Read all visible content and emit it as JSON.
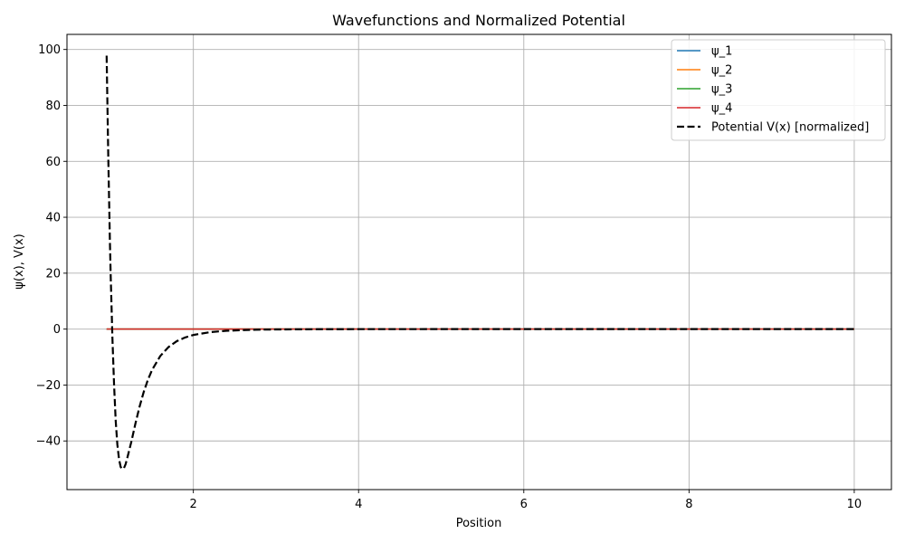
{
  "chart_data": {
    "type": "line",
    "title": "Wavefunctions and Normalized Potential",
    "xlabel": "Position",
    "ylabel": "ψ(x), V(x)",
    "xlim": [
      0.47,
      10.45
    ],
    "ylim": [
      -57.4,
      105.4
    ],
    "xticks": [
      2,
      4,
      6,
      8,
      10
    ],
    "xtick_labels": [
      "2",
      "4",
      "6",
      "8",
      "10"
    ],
    "yticks": [
      -40,
      -20,
      0,
      20,
      40,
      60,
      80,
      100
    ],
    "ytick_labels": [
      "−40",
      "−20",
      "0",
      "20",
      "40",
      "60",
      "80",
      "100"
    ],
    "grid": true,
    "legend_position": "top-right",
    "series": [
      {
        "name": "ψ_1",
        "color": "#1f77b4",
        "style": "solid",
        "x": [
          0.95,
          10.0
        ],
        "y": [
          0,
          0
        ]
      },
      {
        "name": "ψ_2",
        "color": "#ff7f0e",
        "style": "solid",
        "x": [
          0.95,
          10.0
        ],
        "y": [
          0,
          0
        ]
      },
      {
        "name": "ψ_3",
        "color": "#2ca02c",
        "style": "solid",
        "x": [
          0.95,
          10.0
        ],
        "y": [
          0,
          0
        ]
      },
      {
        "name": "ψ_4",
        "color": "#d62728",
        "style": "solid",
        "x": [
          0.95,
          10.0
        ],
        "y": [
          0,
          0
        ]
      },
      {
        "name": "Potential V(x) [normalized]",
        "color": "#000000",
        "style": "dashed",
        "x": [
          0.95,
          0.97,
          0.99,
          1.0,
          1.02,
          1.04,
          1.06,
          1.08,
          1.1,
          1.12,
          1.14,
          1.16,
          1.18,
          1.2,
          1.25,
          1.3,
          1.35,
          1.4,
          1.45,
          1.5,
          1.6,
          1.7,
          1.8,
          1.9,
          2.0,
          2.2,
          2.4,
          2.6,
          2.8,
          3.0,
          3.5,
          4.0,
          5.0,
          6.0,
          7.0,
          8.0,
          9.0,
          10.0
        ],
        "y": [
          97.8,
          61.7,
          30.9,
          18.3,
          -3.1,
          -19.8,
          -32.9,
          -41.3,
          -46.5,
          -49.3,
          -50.0,
          -49.7,
          -48.3,
          -46.1,
          -40.2,
          -33.6,
          -27.6,
          -22.4,
          -18.1,
          -14.6,
          -9.6,
          -6.4,
          -4.3,
          -3.0,
          -2.1,
          -1.1,
          -0.6,
          -0.35,
          -0.2,
          -0.12,
          -0.04,
          -0.015,
          0,
          0,
          0,
          0,
          0,
          0
        ]
      }
    ]
  }
}
